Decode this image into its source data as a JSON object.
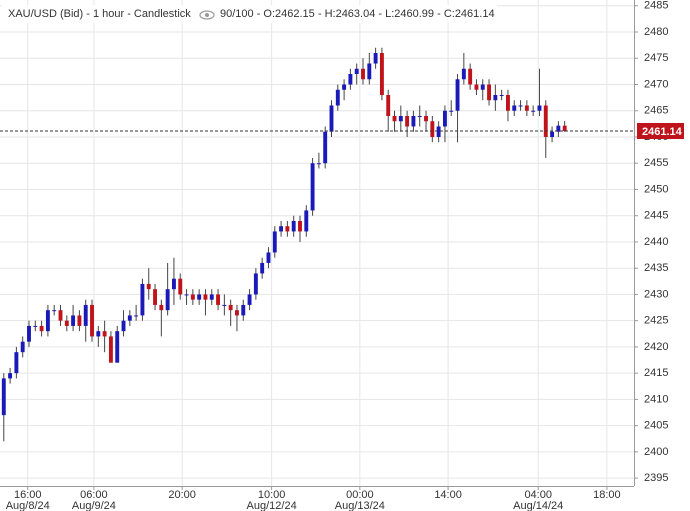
{
  "chart_data": {
    "type": "candlestick",
    "title": "XAU/USD (Bid) - 1 hour - Candlestick",
    "subtitle": "90/100 - O:2462.15 - H:2463.04 - L:2460.99 - C:2461.14",
    "open": [
      2407,
      2414,
      2415,
      2419,
      2421,
      2424,
      2424,
      2423,
      2427,
      2427,
      2425,
      2424,
      2426,
      2424,
      2428,
      2422,
      2423,
      2422,
      2417,
      2423,
      2425,
      2426,
      2426,
      2432,
      2431,
      2428,
      2427,
      2431,
      2433,
      2430,
      2430,
      2429,
      2430,
      2429,
      2430,
      2428,
      2428,
      2427,
      2426,
      2428,
      2430,
      2434,
      2436,
      2438,
      2442,
      2443,
      2442,
      2444,
      2442,
      2446,
      2455,
      2455,
      2461,
      2466,
      2469,
      2470,
      2472,
      2473,
      2471,
      2474,
      2476,
      2468,
      2464,
      2463,
      2464,
      2462,
      2464,
      2464,
      2463,
      2460,
      2462,
      2465,
      2465,
      2471,
      2473,
      2470,
      2469,
      2470,
      2467,
      2468,
      2468,
      2465,
      2466,
      2466,
      2465,
      2465,
      2466,
      2460,
      2461,
      2462.15
    ],
    "high": [
      2415,
      2416,
      2420,
      2422,
      2425,
      2425,
      2425,
      2428,
      2428,
      2428,
      2426,
      2428,
      2427,
      2429,
      2429,
      2424,
      2425,
      2423,
      2424,
      2427,
      2427,
      2428,
      2433,
      2435,
      2432,
      2429,
      2436,
      2437,
      2434,
      2431,
      2431,
      2431,
      2431,
      2431,
      2431,
      2430,
      2429,
      2428,
      2429,
      2431,
      2435,
      2437,
      2439,
      2443,
      2444,
      2444,
      2445,
      2445,
      2447,
      2456,
      2457,
      2462,
      2467,
      2470,
      2471,
      2473,
      2474,
      2475,
      2476,
      2477,
      2477,
      2469,
      2465,
      2466,
      2465,
      2465,
      2466,
      2465,
      2464,
      2463,
      2466,
      2467,
      2472,
      2476,
      2474,
      2471,
      2471,
      2471,
      2470,
      2469,
      2469,
      2467,
      2467,
      2467,
      2466,
      2473,
      2467,
      2462,
      2463,
      2463.04
    ],
    "low": [
      2402,
      2413,
      2414,
      2418,
      2420,
      2423,
      2422,
      2422,
      2426,
      2424,
      2423,
      2423,
      2423,
      2421,
      2421,
      2420,
      2419,
      2417,
      2417,
      2422,
      2424,
      2425,
      2425,
      2429,
      2427,
      2422,
      2426,
      2428,
      2429,
      2428,
      2428,
      2428,
      2426,
      2428,
      2427,
      2426,
      2424,
      2423,
      2425,
      2427,
      2429,
      2433,
      2435,
      2437,
      2441,
      2441,
      2441,
      2440,
      2441,
      2445,
      2454,
      2454,
      2460,
      2465,
      2467,
      2469,
      2470,
      2470,
      2470,
      2473,
      2467,
      2461,
      2461,
      2461,
      2460,
      2461,
      2462,
      2461,
      2459,
      2459,
      2459,
      2464,
      2459,
      2470,
      2469,
      2468,
      2467,
      2466,
      2465,
      2467,
      2463,
      2464,
      2465,
      2464,
      2464,
      2464,
      2456,
      2459,
      2460,
      2460.99
    ],
    "close": [
      2414,
      2415,
      2419,
      2421,
      2424,
      2424,
      2423,
      2427,
      2427,
      2425,
      2424,
      2426,
      2424,
      2428,
      2422,
      2423,
      2422,
      2417,
      2423,
      2425,
      2426,
      2426,
      2432,
      2431,
      2428,
      2427,
      2431,
      2433,
      2430,
      2430,
      2429,
      2430,
      2429,
      2430,
      2428,
      2428,
      2427,
      2426,
      2428,
      2430,
      2434,
      2436,
      2438,
      2442,
      2443,
      2442,
      2444,
      2442,
      2446,
      2455,
      2455,
      2461,
      2466,
      2469,
      2470,
      2472,
      2473,
      2471,
      2474,
      2476,
      2468,
      2464,
      2463,
      2464,
      2462,
      2464,
      2464,
      2463,
      2460,
      2462,
      2465,
      2465,
      2471,
      2473,
      2470,
      2469,
      2470,
      2467,
      2468,
      2468,
      2465,
      2466,
      2466,
      2465,
      2465,
      2466,
      2460,
      2461,
      2462.15,
      2461.14
    ],
    "up_color": "#1a1ab8",
    "down_color": "#c0141c",
    "xlim": [
      -0.6,
      100
    ],
    "xticks": [
      {
        "value": 3.8,
        "label": "16:00"
      },
      {
        "value": 14.3,
        "label": "06:00"
      },
      {
        "value": 28.3,
        "label": "20:00"
      },
      {
        "value": 42.5,
        "label": "10:00"
      },
      {
        "value": 56.5,
        "label": "00:00"
      },
      {
        "value": 70.5,
        "label": "14:00"
      },
      {
        "value": 84.8,
        "label": "04:00"
      },
      {
        "value": 95.7,
        "label": "18:00"
      }
    ],
    "xtick_dates": [
      "Aug/8/24",
      "Aug/9/24",
      null,
      "Aug/12/24",
      "Aug/13/24",
      null,
      "Aug/14/24",
      null
    ],
    "ylim": [
      2393.5,
      2486.1
    ],
    "yticks": [
      2395,
      2400,
      2405,
      2410,
      2415,
      2420,
      2425,
      2430,
      2435,
      2440,
      2445,
      2450,
      2455,
      2460,
      2465,
      2470,
      2475,
      2480,
      2485
    ],
    "grid": true
  }
}
